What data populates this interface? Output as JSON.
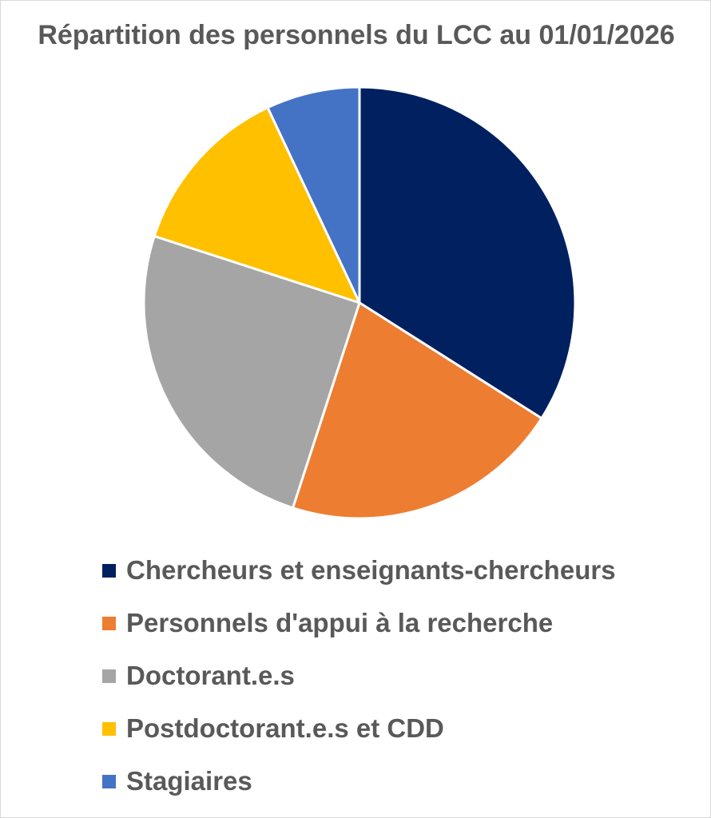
{
  "chart_data": {
    "type": "pie",
    "title": "Répartition des personnels du LCC au 01/01/2026",
    "legend_position": "bottom",
    "series": [
      {
        "name": "Chercheurs et enseignants-chercheurs",
        "value": 34,
        "color": "#002060"
      },
      {
        "name": "Personnels d'appui à la recherche",
        "value": 21,
        "color": "#ED7D31"
      },
      {
        "name": "Doctorant.e.s",
        "value": 25,
        "color": "#A5A5A5"
      },
      {
        "name": "Postdoctorant.e.s et CDD",
        "value": 13,
        "color": "#FFC000"
      },
      {
        "name": "Stagiaires",
        "value": 7,
        "color": "#4472C4"
      }
    ]
  }
}
